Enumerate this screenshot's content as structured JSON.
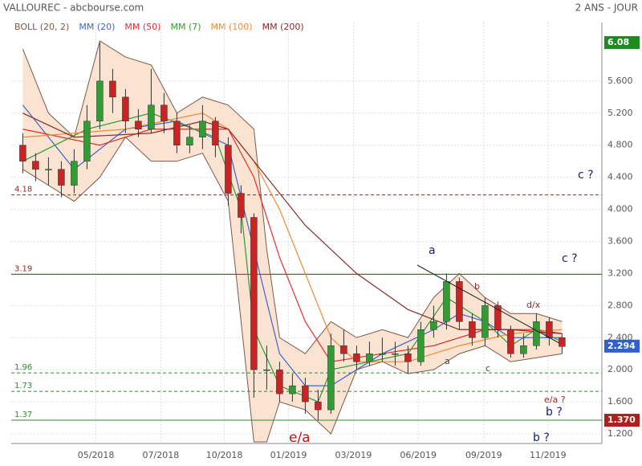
{
  "header": {
    "title": "VALLOUREC - abcbourse.com",
    "period": "2 ANS - JOUR"
  },
  "chart_data": {
    "type": "candlestick",
    "x": [
      0,
      1,
      2,
      3,
      4,
      5,
      6,
      7,
      8,
      9,
      10,
      11,
      12,
      13,
      14,
      15,
      16,
      17,
      18,
      19,
      20,
      21,
      22,
      23,
      24,
      25,
      26,
      27,
      28,
      29,
      30,
      31,
      32,
      33,
      34,
      35,
      36,
      37,
      38,
      39,
      40,
      41,
      42
    ],
    "open": [
      4.8,
      4.6,
      4.5,
      4.5,
      4.3,
      4.6,
      5.1,
      5.6,
      5.4,
      5.1,
      5.0,
      5.3,
      5.1,
      4.8,
      4.9,
      5.1,
      4.8,
      4.2,
      3.9,
      2.0,
      2.0,
      1.7,
      1.8,
      1.6,
      1.5,
      2.3,
      2.2,
      2.1,
      2.2,
      2.2,
      2.2,
      2.1,
      2.5,
      2.6,
      3.1,
      2.6,
      2.4,
      2.8,
      2.5,
      2.2,
      2.3,
      2.6,
      2.4
    ],
    "high": [
      4.95,
      4.7,
      4.65,
      4.6,
      4.75,
      5.3,
      6.08,
      5.75,
      5.5,
      5.25,
      5.75,
      5.45,
      5.2,
      5.05,
      5.3,
      5.15,
      4.9,
      4.3,
      3.95,
      2.3,
      2.1,
      1.95,
      1.9,
      1.75,
      2.45,
      2.5,
      2.3,
      2.35,
      2.4,
      2.35,
      2.3,
      2.6,
      2.8,
      3.2,
      3.15,
      2.7,
      2.9,
      2.85,
      2.55,
      2.45,
      2.7,
      2.65,
      2.45
    ],
    "low": [
      4.45,
      4.35,
      4.3,
      4.15,
      4.2,
      4.5,
      5.0,
      5.2,
      4.95,
      4.9,
      4.95,
      4.95,
      4.7,
      4.7,
      4.75,
      4.65,
      4.05,
      3.7,
      1.65,
      1.75,
      1.6,
      1.6,
      1.45,
      1.37,
      1.45,
      2.1,
      2.0,
      2.05,
      2.1,
      2.05,
      1.95,
      2.05,
      2.4,
      2.5,
      2.5,
      2.3,
      2.3,
      2.4,
      2.15,
      2.15,
      2.25,
      2.3,
      2.2
    ],
    "close": [
      4.6,
      4.5,
      4.5,
      4.3,
      4.6,
      5.1,
      5.6,
      5.4,
      5.1,
      5.0,
      5.3,
      5.1,
      4.8,
      4.9,
      5.1,
      4.8,
      4.2,
      3.9,
      2.0,
      2.0,
      1.7,
      1.8,
      1.6,
      1.5,
      2.3,
      2.2,
      2.1,
      2.2,
      2.2,
      2.2,
      2.1,
      2.5,
      2.6,
      3.1,
      2.6,
      2.4,
      2.8,
      2.5,
      2.2,
      2.3,
      2.6,
      2.4,
      2.29
    ],
    "up_color": "#2e9e2e",
    "down_color": "#cc2222",
    "bands": {
      "name": "BOLL (20, 2)",
      "color": "#7a5a4a",
      "fill": "#fbe3d2",
      "x": [
        0,
        2,
        4,
        6,
        8,
        10,
        12,
        14,
        16,
        18,
        19,
        20,
        22,
        24,
        26,
        28,
        30,
        32,
        34,
        36,
        38,
        40,
        42
      ],
      "upper": [
        6.0,
        5.2,
        4.9,
        6.1,
        5.9,
        5.8,
        5.2,
        5.4,
        5.3,
        5.0,
        3.5,
        2.4,
        2.2,
        2.6,
        2.4,
        2.5,
        2.4,
        2.9,
        3.2,
        2.9,
        2.7,
        2.7,
        2.6
      ],
      "lower": [
        4.5,
        4.3,
        4.1,
        4.4,
        4.9,
        4.6,
        4.6,
        4.7,
        4.1,
        1.1,
        1.1,
        1.6,
        1.5,
        1.2,
        2.0,
        2.1,
        1.95,
        2.0,
        2.2,
        2.3,
        2.1,
        2.15,
        2.2
      ]
    },
    "series": [
      {
        "name": "MM (20)",
        "color": "#3d64d8",
        "x": [
          0,
          4,
          8,
          12,
          16,
          18,
          20,
          22,
          24,
          28,
          32,
          34,
          36,
          38,
          40,
          42
        ],
        "values": [
          5.3,
          4.5,
          5.0,
          5.1,
          4.8,
          3.5,
          2.2,
          1.8,
          1.8,
          2.2,
          2.5,
          2.7,
          2.6,
          2.4,
          2.4,
          2.4
        ]
      },
      {
        "name": "MM (50)",
        "color": "#e03030",
        "x": [
          0,
          6,
          10,
          16,
          18,
          20,
          22,
          24,
          28,
          32,
          36,
          40,
          42
        ],
        "values": [
          5.0,
          4.8,
          5.0,
          5.0,
          4.4,
          3.4,
          2.6,
          2.1,
          2.2,
          2.3,
          2.5,
          2.5,
          2.45
        ]
      },
      {
        "name": "MM (7)",
        "color": "#2e9e2e",
        "x": [
          0,
          5,
          10,
          15,
          17,
          18,
          20,
          23,
          24,
          30,
          33,
          36,
          38,
          40,
          42
        ],
        "values": [
          4.6,
          5.0,
          5.2,
          4.9,
          4.0,
          2.5,
          1.8,
          1.6,
          2.0,
          2.2,
          2.9,
          2.6,
          2.3,
          2.5,
          2.35
        ]
      },
      {
        "name": "MM (100)",
        "color": "#f08a30",
        "x": [
          0,
          8,
          14,
          16,
          18,
          20,
          22,
          24,
          26,
          30,
          34,
          38,
          42
        ],
        "values": [
          4.9,
          5.0,
          5.2,
          5.0,
          4.6,
          4.0,
          3.2,
          2.4,
          2.1,
          2.1,
          2.3,
          2.45,
          2.5
        ]
      },
      {
        "name": "MM (200)",
        "color": "#8b2a2a",
        "x": [
          0,
          4,
          10,
          14,
          16,
          18,
          20,
          22,
          26,
          30,
          34,
          38,
          42
        ],
        "values": [
          5.2,
          4.9,
          4.95,
          5.1,
          5.0,
          4.6,
          4.2,
          3.8,
          3.2,
          2.75,
          2.5,
          2.5,
          2.45
        ]
      }
    ],
    "levels": [
      {
        "value": 4.18,
        "color": "#8b2a2a",
        "dashed": true
      },
      {
        "value": 3.19,
        "color": "#8b2a2a",
        "dashed": false
      },
      {
        "value": 1.96,
        "color": "#2e8b2e",
        "dashed": true
      },
      {
        "value": 1.73,
        "color": "#2e8b2e",
        "dashed": true
      },
      {
        "value": 1.37,
        "color": "#2e8b2e",
        "dashed": false
      }
    ],
    "price_tags": [
      {
        "value": 6.08,
        "label": "6.08",
        "color": "#1f8a1f"
      },
      {
        "value": 2.294,
        "label": "2.294",
        "color": "#2f5fd0"
      },
      {
        "value": 1.37,
        "label": "1.370",
        "color": "#b21e1e"
      }
    ],
    "xlim": [
      -0.9,
      45.1
    ],
    "xticks": [
      {
        "value": 5.7,
        "label": "05/2018"
      },
      {
        "value": 10.75,
        "label": "07/2018"
      },
      {
        "value": 15.7,
        "label": "10/2018"
      },
      {
        "value": 20.7,
        "label": "01/2019"
      },
      {
        "value": 25.75,
        "label": "03/2019"
      },
      {
        "value": 30.8,
        "label": "06/2019"
      },
      {
        "value": 35.9,
        "label": "09/2019"
      },
      {
        "value": 40.9,
        "label": "11/2019"
      }
    ],
    "ylim": [
      1.08,
      6.33
    ],
    "yticks": [
      {
        "value": 1.2,
        "label": "1.200"
      },
      {
        "value": 1.6,
        "label": "1.600"
      },
      {
        "value": 2.0,
        "label": "2.000"
      },
      {
        "value": 2.4,
        "label": "2.400"
      },
      {
        "value": 2.8,
        "label": "2.800"
      },
      {
        "value": 3.2,
        "label": "3.200"
      },
      {
        "value": 3.6,
        "label": "3.600"
      },
      {
        "value": 4.0,
        "label": "4.000"
      },
      {
        "value": 4.4,
        "label": "4.400"
      },
      {
        "value": 4.8,
        "label": "4.800"
      },
      {
        "value": 5.2,
        "label": "5.200"
      },
      {
        "value": 5.6,
        "label": "5.600"
      }
    ],
    "grid": true,
    "annotations": [
      "c ?",
      "c ?",
      "a",
      "b",
      "a",
      "c",
      "d/x",
      "e/a ?",
      "b ?",
      "e/a",
      "b ?"
    ]
  }
}
